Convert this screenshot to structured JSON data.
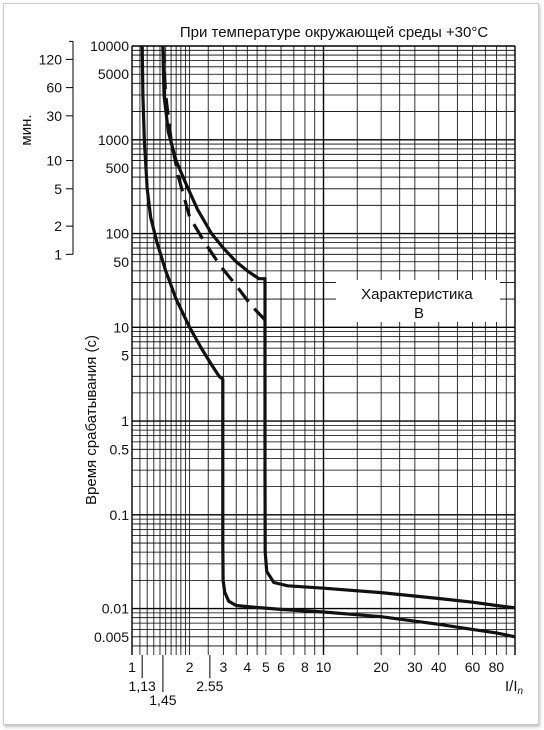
{
  "chart_data": {
    "type": "line",
    "title": "При температуре окружающей среды +30°C",
    "annotation": "Характеристика\nB",
    "xlabel": "I/In",
    "ylabel": "Время срабатывания (с)",
    "minutes_label": "мин.",
    "x_scale": "log",
    "y_scale": "log",
    "xlim": [
      1,
      100
    ],
    "ylim": [
      0.0032,
      10000
    ],
    "grid": true,
    "x_ticks": [
      {
        "value": 1,
        "label": "1"
      },
      {
        "value": 2,
        "label": "2"
      },
      {
        "value": 3,
        "label": "3"
      },
      {
        "value": 4,
        "label": "4"
      },
      {
        "value": 5,
        "label": "5"
      },
      {
        "value": 6,
        "label": "6"
      },
      {
        "value": 8,
        "label": "8"
      },
      {
        "value": 10,
        "label": "10"
      },
      {
        "value": 20,
        "label": "20"
      },
      {
        "value": 30,
        "label": "30"
      },
      {
        "value": 40,
        "label": "40"
      },
      {
        "value": 60,
        "label": "60"
      },
      {
        "value": 80,
        "label": "80"
      }
    ],
    "x_marks": [
      {
        "value": 1.13,
        "label": "1,13"
      },
      {
        "value": 1.45,
        "label": "1,45"
      },
      {
        "value": 2.55,
        "label": "2.55"
      }
    ],
    "y_ticks": [
      {
        "value": 10000,
        "label": "10000"
      },
      {
        "value": 5000,
        "label": "5000"
      },
      {
        "value": 1000,
        "label": "1000"
      },
      {
        "value": 500,
        "label": "500"
      },
      {
        "value": 100,
        "label": "100"
      },
      {
        "value": 50,
        "label": "50"
      },
      {
        "value": 10,
        "label": "10"
      },
      {
        "value": 5,
        "label": "5"
      },
      {
        "value": 1,
        "label": "1"
      },
      {
        "value": 0.5,
        "label": "0.5"
      },
      {
        "value": 0.1,
        "label": "0.1"
      },
      {
        "value": 0.01,
        "label": "0.01"
      },
      {
        "value": 0.005,
        "label": "0.005"
      }
    ],
    "minute_ticks": [
      {
        "value": 120,
        "label": "120"
      },
      {
        "value": 60,
        "label": "60"
      },
      {
        "value": 30,
        "label": "30"
      },
      {
        "value": 10,
        "label": "10"
      },
      {
        "value": 5,
        "label": "5"
      },
      {
        "value": 2,
        "label": "2"
      },
      {
        "value": 1,
        "label": "1"
      }
    ],
    "series": [
      {
        "style": "solid",
        "points": [
          [
            1.13,
            10000
          ],
          [
            1.14,
            3000
          ],
          [
            1.16,
            1000
          ],
          [
            1.2,
            300
          ],
          [
            1.25,
            150
          ],
          [
            1.35,
            80
          ],
          [
            1.5,
            40
          ],
          [
            1.7,
            20
          ],
          [
            2.0,
            10
          ],
          [
            2.3,
            6
          ],
          [
            2.6,
            4
          ],
          [
            2.85,
            3
          ],
          [
            2.98,
            2.8
          ],
          [
            2.98,
            0.5
          ],
          [
            2.98,
            0.05
          ],
          [
            2.99,
            0.02
          ],
          [
            3.05,
            0.015
          ],
          [
            3.2,
            0.012
          ],
          [
            3.5,
            0.0108
          ],
          [
            4.2,
            0.0104
          ],
          [
            6,
            0.0098
          ],
          [
            10,
            0.0092
          ],
          [
            20,
            0.0082
          ],
          [
            40,
            0.0068
          ],
          [
            60,
            0.006
          ],
          [
            80,
            0.0055
          ],
          [
            100,
            0.005
          ]
        ]
      },
      {
        "style": "solid",
        "points": [
          [
            1.45,
            10000
          ],
          [
            1.47,
            3000
          ],
          [
            1.55,
            1200
          ],
          [
            1.7,
            600
          ],
          [
            1.9,
            350
          ],
          [
            2.2,
            180
          ],
          [
            2.6,
            100
          ],
          [
            3.0,
            70
          ],
          [
            3.5,
            50
          ],
          [
            4.0,
            40
          ],
          [
            4.6,
            33
          ],
          [
            4.95,
            33
          ],
          [
            4.95,
            3
          ],
          [
            4.95,
            0.3
          ],
          [
            4.96,
            0.04
          ],
          [
            5.05,
            0.025
          ],
          [
            5.5,
            0.019
          ],
          [
            6.5,
            0.0175
          ],
          [
            10,
            0.0165
          ],
          [
            20,
            0.0148
          ],
          [
            40,
            0.0128
          ],
          [
            60,
            0.0117
          ],
          [
            80,
            0.0108
          ],
          [
            100,
            0.0102
          ]
        ]
      },
      {
        "style": "dashed",
        "points": [
          [
            1.45,
            10000
          ],
          [
            1.5,
            3000
          ],
          [
            1.6,
            1000
          ],
          [
            1.75,
            400
          ],
          [
            2.0,
            150
          ],
          [
            2.4,
            80
          ],
          [
            2.9,
            45
          ],
          [
            3.5,
            28
          ],
          [
            4.2,
            17
          ],
          [
            4.95,
            12
          ]
        ]
      }
    ]
  }
}
